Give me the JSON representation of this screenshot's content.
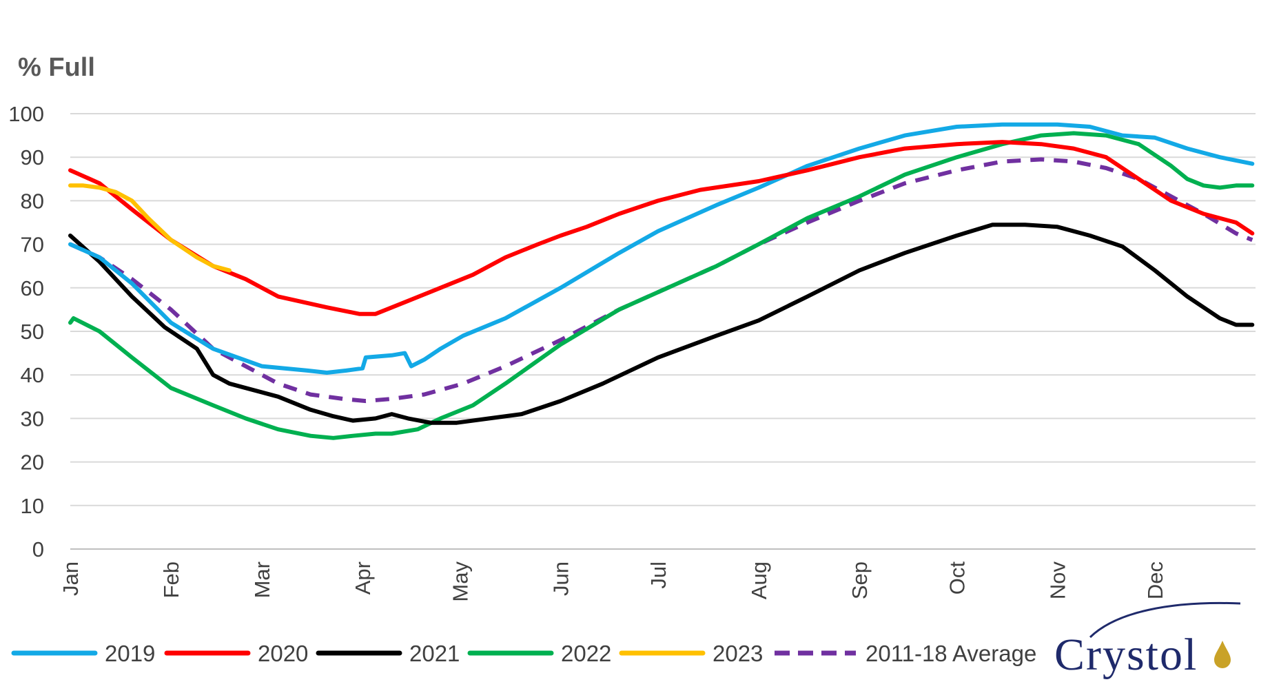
{
  "chart_data": {
    "type": "line",
    "title": "",
    "ylabel": "% Full",
    "xlabel": "",
    "ylim": [
      0,
      100
    ],
    "yticks": [
      0,
      10,
      20,
      30,
      40,
      50,
      60,
      70,
      80,
      90,
      100
    ],
    "grid": "horizontal",
    "x_unit": "day of year",
    "month_ticks": [
      "Jan",
      "Feb",
      "Mar",
      "Apr",
      "May",
      "Jun",
      "Jul",
      "Aug",
      "Sep",
      "Oct",
      "Nov",
      "Dec"
    ],
    "legend_position": "bottom",
    "series": [
      {
        "name": "2019",
        "color": "#13a9e6",
        "dash": false,
        "x": [
          1,
          10,
          20,
          32,
          45,
          60,
          74,
          80,
          86,
          91,
          92,
          100,
          104,
          106,
          110,
          115,
          122,
          135,
          152,
          170,
          182,
          200,
          213,
          228,
          244,
          258,
          274,
          288,
          299,
          305,
          315,
          325,
          335,
          345,
          355,
          365
        ],
        "y": [
          70,
          67,
          61,
          52,
          46,
          42,
          41,
          40.5,
          41,
          41.5,
          44,
          44.5,
          45,
          42,
          43.5,
          46,
          49,
          53,
          60,
          68,
          73,
          79,
          83,
          88,
          92,
          95,
          97,
          97.5,
          97.5,
          97.5,
          97,
          95,
          94.5,
          92,
          90,
          88.5
        ]
      },
      {
        "name": "2020",
        "color": "#ff0000",
        "dash": false,
        "x": [
          1,
          10,
          20,
          32,
          45,
          55,
          65,
          80,
          90,
          95,
          105,
          115,
          125,
          135,
          145,
          152,
          160,
          170,
          182,
          195,
          213,
          228,
          244,
          258,
          274,
          288,
          300,
          310,
          320,
          330,
          340,
          350,
          360,
          365
        ],
        "y": [
          87,
          84,
          78,
          71,
          65,
          62,
          58,
          55.5,
          54,
          54,
          57,
          60,
          63,
          67,
          70,
          72,
          74,
          77,
          80,
          82.5,
          84.5,
          87,
          90,
          92,
          93,
          93.5,
          93,
          92,
          90,
          85,
          80,
          77,
          75,
          72.5
        ]
      },
      {
        "name": "2021",
        "color": "#000000",
        "dash": false,
        "x": [
          1,
          10,
          20,
          30,
          40,
          45,
          50,
          55,
          65,
          75,
          82,
          88,
          95,
          100,
          105,
          112,
          120,
          130,
          140,
          152,
          165,
          182,
          200,
          213,
          228,
          244,
          258,
          274,
          285,
          295,
          305,
          315,
          325,
          335,
          345,
          355,
          360,
          365
        ],
        "y": [
          72,
          66,
          58,
          51,
          46,
          40,
          38,
          37,
          35,
          32,
          30.5,
          29.5,
          30,
          31,
          30,
          29,
          29,
          30,
          31,
          34,
          38,
          44,
          49,
          52.5,
          58,
          64,
          68,
          72,
          74.5,
          74.5,
          74,
          72,
          69.5,
          64,
          58,
          53,
          51.5,
          51.5
        ]
      },
      {
        "name": "2022",
        "color": "#00b050",
        "dash": false,
        "x": [
          1,
          2,
          10,
          20,
          32,
          45,
          55,
          65,
          75,
          82,
          88,
          95,
          100,
          108,
          115,
          125,
          135,
          152,
          170,
          182,
          200,
          213,
          228,
          244,
          258,
          274,
          288,
          300,
          310,
          320,
          330,
          340,
          345,
          350,
          355,
          360,
          365
        ],
        "y": [
          52,
          53,
          50,
          44,
          37,
          33,
          30,
          27.5,
          26,
          25.5,
          26,
          26.5,
          26.5,
          27.5,
          30,
          33,
          38,
          47,
          55,
          59,
          65,
          70,
          76,
          81,
          86,
          90,
          93,
          95,
          95.5,
          95,
          93,
          88,
          85,
          83.5,
          83,
          83.5,
          83.5
        ]
      },
      {
        "name": "2023",
        "color": "#ffc000",
        "dash": false,
        "x": [
          1,
          5,
          10,
          15,
          20,
          25,
          32,
          40,
          45,
          50
        ],
        "y": [
          83.5,
          83.5,
          83,
          82,
          80,
          76,
          71,
          67,
          65,
          64
        ]
      },
      {
        "name": "2011-18 Average",
        "color": "#7030a0",
        "dash": true,
        "x": [
          1,
          10,
          20,
          32,
          45,
          55,
          65,
          75,
          85,
          92,
          100,
          110,
          122,
          135,
          152,
          170,
          182,
          200,
          213,
          228,
          244,
          258,
          274,
          288,
          300,
          310,
          320,
          330,
          340,
          350,
          360,
          365
        ],
        "y": [
          70,
          67,
          62,
          55,
          46,
          42,
          38,
          35.5,
          34.5,
          34,
          34.5,
          35.5,
          38,
          42,
          48,
          55,
          59,
          65,
          70,
          75,
          80,
          84,
          87,
          89,
          89.5,
          89,
          87.5,
          85,
          81,
          77,
          72.5,
          71
        ]
      }
    ]
  },
  "logo": {
    "text": "Crystol"
  }
}
